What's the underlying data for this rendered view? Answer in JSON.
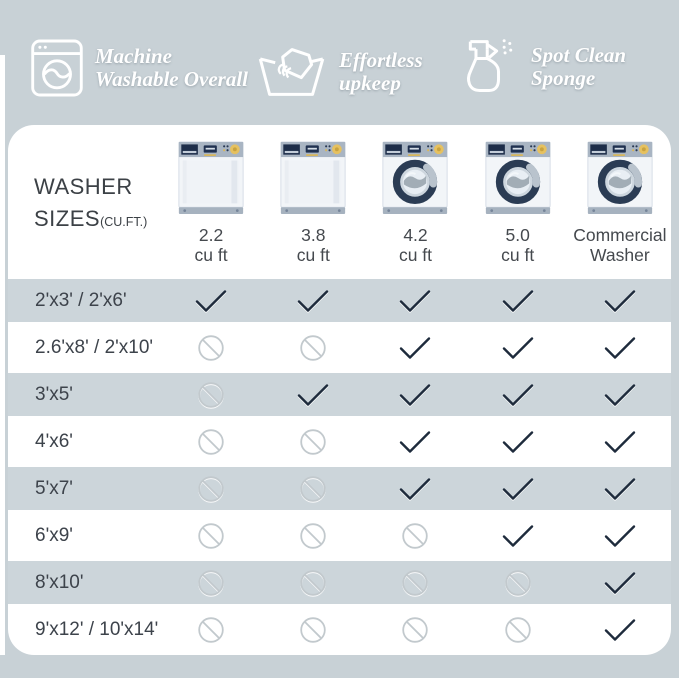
{
  "features": [
    {
      "icon": "washing-machine-icon",
      "line1": "Machine",
      "line2": "Washable Overall"
    },
    {
      "icon": "hand-wash-icon",
      "line1": "Effortless",
      "line2": "upkeep"
    },
    {
      "icon": "spray-bottle-icon",
      "line1": "Spot Clean",
      "line2": "Sponge"
    }
  ],
  "table": {
    "title_line1": "WASHER",
    "title_line2": "SIZES",
    "title_suffix": "(CU.FT.)",
    "columns": [
      {
        "label_line1": "2.2",
        "label_line2": "cu ft",
        "washer_type": "top-load"
      },
      {
        "label_line1": "3.8",
        "label_line2": "cu ft",
        "washer_type": "top-load"
      },
      {
        "label_line1": "4.2",
        "label_line2": "cu ft",
        "washer_type": "front-load"
      },
      {
        "label_line1": "5.0",
        "label_line2": "cu ft",
        "washer_type": "front-load"
      },
      {
        "label_line1": "Commercial",
        "label_line2": "Washer",
        "washer_type": "front-load"
      }
    ],
    "rows": [
      {
        "label": "2'x3'  /  2'x6'",
        "cells": [
          "yes",
          "yes",
          "yes",
          "yes",
          "yes"
        ]
      },
      {
        "label": "2.6'x8' / 2'x10'",
        "cells": [
          "no",
          "no",
          "yes",
          "yes",
          "yes"
        ]
      },
      {
        "label": "3'x5'",
        "cells": [
          "no",
          "yes",
          "yes",
          "yes",
          "yes"
        ]
      },
      {
        "label": "4'x6'",
        "cells": [
          "no",
          "no",
          "yes",
          "yes",
          "yes"
        ]
      },
      {
        "label": "5'x7'",
        "cells": [
          "no",
          "no",
          "yes",
          "yes",
          "yes"
        ]
      },
      {
        "label": "6'x9'",
        "cells": [
          "no",
          "no",
          "no",
          "yes",
          "yes"
        ]
      },
      {
        "label": "8'x10'",
        "cells": [
          "no",
          "no",
          "no",
          "no",
          "yes"
        ]
      },
      {
        "label": "9'x12' / 10'x14'",
        "cells": [
          "no",
          "no",
          "no",
          "no",
          "yes"
        ]
      }
    ],
    "cell_icons": {
      "yes": "checkmark-icon",
      "no": "not-allowed-icon"
    }
  },
  "colors": {
    "background": "#c8d1d6",
    "card": "#ffffff",
    "row_highlight": "#ccd5da",
    "check": "#1e2b3c",
    "not_allowed": "#c2c9cd",
    "washer_navy": "#2b3c54",
    "washer_panel": "#a9b5c3",
    "washer_gold": "#e6c160",
    "washer_base": "#a6b2bf"
  }
}
